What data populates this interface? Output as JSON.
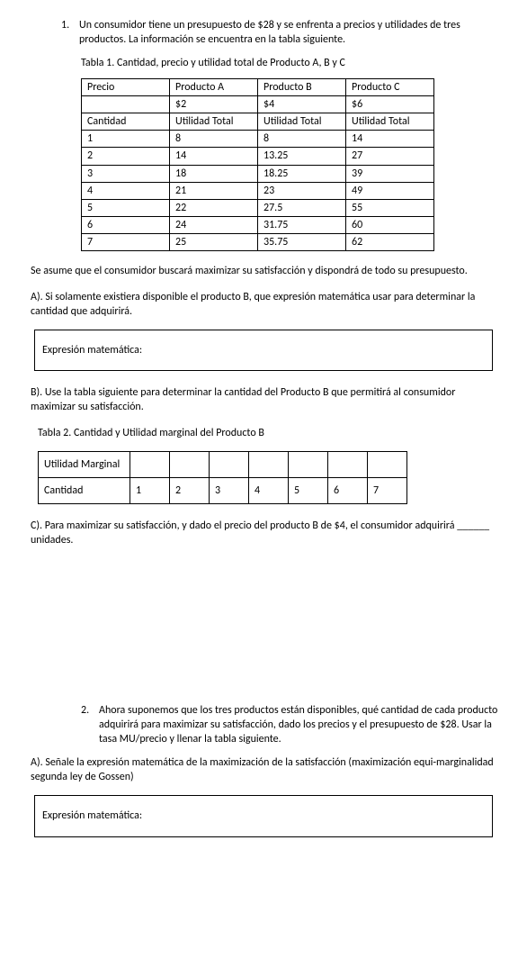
{
  "q1": {
    "num": "1.",
    "text": "Un consumidor tiene un presupuesto de $28 y se enfrenta a precios y utilidades de tres productos. La información se encuentra en la tabla siguiente.",
    "caption": "Tabla 1. Cantidad, precio y utilidad total de Producto A, B y C",
    "table": {
      "r0": [
        "Precio",
        "Producto A",
        "Producto B",
        "Producto C"
      ],
      "r1": [
        "",
        "$2",
        "$4",
        "$6"
      ],
      "r2": [
        "Cantidad",
        "Utilidad Total",
        "Utilidad Total",
        "Utilidad Total"
      ],
      "rows": [
        [
          "1",
          "8",
          "8",
          "14"
        ],
        [
          "2",
          "14",
          "13.25",
          "27"
        ],
        [
          "3",
          "18",
          "18.25",
          "39"
        ],
        [
          "4",
          "21",
          "23",
          "49"
        ],
        [
          "5",
          "22",
          "27.5",
          "55"
        ],
        [
          "6",
          "24",
          "31.75",
          "60"
        ],
        [
          "7",
          "25",
          "35.75",
          "62"
        ]
      ]
    },
    "assume": "Se asume que el consumidor buscará maximizar su satisfacción y dispondrá de todo su presupuesto.",
    "a": "A). Si solamente existiera disponible el producto B, que expresión matemática usar para determinar la cantidad que adquirirá.",
    "box_a": "Expresión matemática:",
    "b": "B). Use la tabla siguiente para determinar la cantidad del Producto B que permitirá al consumidor maximizar su satisfacción.",
    "caption2": "Tabla 2. Cantidad y Utilidad marginal del Producto B",
    "t2": {
      "r0lbl": "Utilidad Marginal",
      "r1lbl": "Cantidad",
      "r1": [
        "1",
        "2",
        "3",
        "4",
        "5",
        "6",
        "7"
      ]
    },
    "c": "C). Para maximizar su satisfacción, y dado el precio del producto B de $4, el consumidor adquirirá ______ unidades."
  },
  "q2": {
    "num": "2.",
    "text": "Ahora suponemos que los tres productos están disponibles, qué cantidad de cada producto adquirirá para maximizar su satisfacción, dado los precios y el presupuesto de $28. Usar la tasa MU/precio y llenar la tabla siguiente.",
    "a": "A). Señale la expresión matemática de la maximización de la satisfacción (maximización equi-marginalidad segunda ley de Gossen)",
    "box_a": "Expresión matemática:"
  }
}
